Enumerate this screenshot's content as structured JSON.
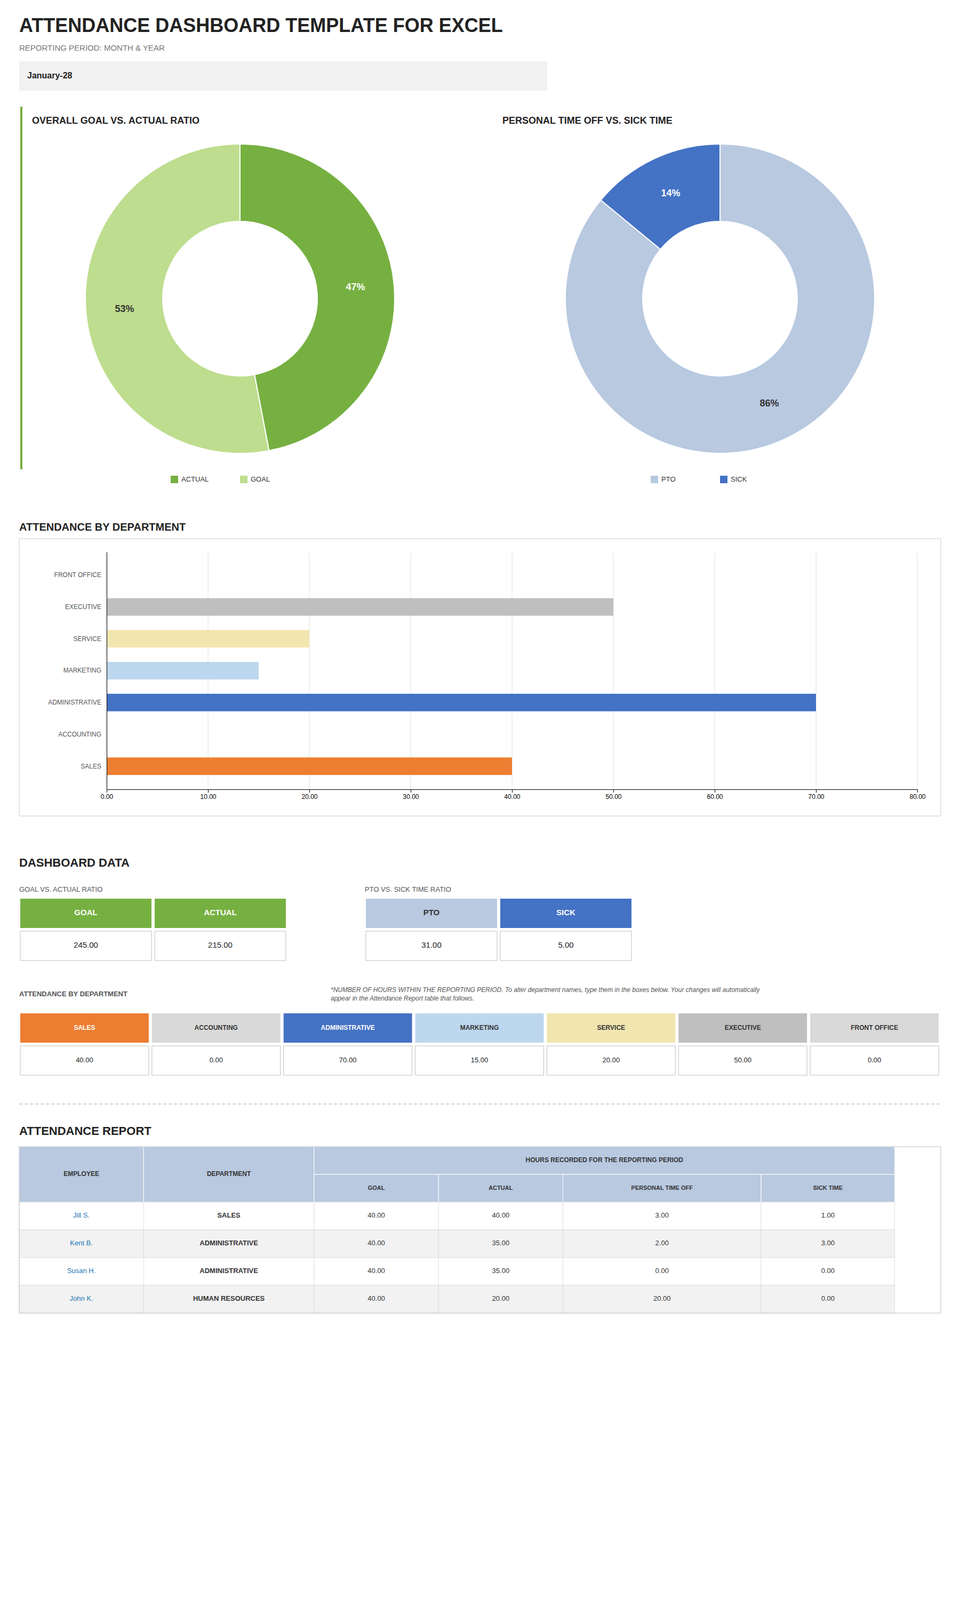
{
  "title": "ATTENDANCE DASHBOARD TEMPLATE FOR EXCEL",
  "subtitle": "REPORTING PERIOD: MONTH & YEAR",
  "annotations": [
    "January-28",
    "DASHBOARD DATA"
  ],
  "chart_data": [
    {
      "type": "pie",
      "title": "OVERALL GOAL VS. ACTUAL RATIO",
      "categories": [
        "ACTUAL",
        "GOAL"
      ],
      "values": [
        47,
        53
      ],
      "value_labels": [
        "47%",
        "53%"
      ],
      "colors": [
        "#76b041",
        "#bedd8e"
      ],
      "data_labels": true,
      "legend": "bottom"
    },
    {
      "type": "pie",
      "title": "PERSONAL TIME OFF VS. SICK TIME",
      "categories": [
        "PTO",
        "SICK"
      ],
      "values": [
        86,
        14
      ],
      "value_labels": [
        "86%",
        "14%"
      ],
      "colors": [
        "#b8c9e0",
        "#4472c4"
      ],
      "data_labels": true,
      "legend": "bottom"
    },
    {
      "type": "bar",
      "title": "ATTENDANCE BY DEPARTMENT",
      "orientation": "horizontal",
      "categories": [
        "FRONT OFFICE",
        "EXECUTIVE",
        "SERVICE",
        "MARKETING",
        "ADMINISTRATIVE",
        "ACCOUNTING",
        "SALES"
      ],
      "values": [
        0,
        50,
        20,
        15,
        70,
        0,
        40
      ],
      "colors": [
        "#d9d9d9",
        "#bfbfbf",
        "#f2e6b0",
        "#bdd7ee",
        "#4472c4",
        "#d9d9d9",
        "#ed7d31"
      ],
      "xlim": [
        0,
        80
      ],
      "xticks": [
        {
          "value": 0,
          "label": "0.00"
        },
        {
          "value": 10,
          "label": "10.00"
        },
        {
          "value": 20,
          "label": "20.00"
        },
        {
          "value": 30,
          "label": "30.00"
        },
        {
          "value": 40,
          "label": "40.00"
        },
        {
          "value": 50,
          "label": "50.00"
        },
        {
          "value": 60,
          "label": "60.00"
        },
        {
          "value": 70,
          "label": "70.00"
        },
        {
          "value": 80,
          "label": "80.00"
        }
      ],
      "grid": true
    },
    {
      "type": "table",
      "title": "GOAL VS. ACTUAL RATIO",
      "columns": [
        "GOAL",
        "ACTUAL"
      ],
      "colors": [
        "#76b041",
        "#76b041"
      ],
      "values": [
        245,
        215
      ],
      "value_labels": [
        "245.00",
        "215.00"
      ]
    },
    {
      "type": "table",
      "title": "PTO VS. SICK TIME RATIO",
      "columns": [
        "PTO",
        "SICK"
      ],
      "colors": [
        "#b8c9e0",
        "#4472c4"
      ],
      "values": [
        31,
        5
      ],
      "value_labels": [
        "31.00",
        "5.00"
      ]
    },
    {
      "type": "table",
      "title": "ATTENDANCE BY DEPARTMENT",
      "annotations": [
        "*NUMBER OF HOURS WITHIN THE REPORTING PERIOD. To alter department names, type them in the boxes below. Your changes will automatically\nappear in the Attendance Report table that follows."
      ],
      "columns": [
        "SALES",
        "ACCOUNTING",
        "ADMINISTRATIVE",
        "MARKETING",
        "SERVICE",
        "EXECUTIVE",
        "FRONT OFFICE"
      ],
      "colors": [
        "#ed7d31",
        "#d9d9d9",
        "#4472c4",
        "#bdd7ee",
        "#f2e6b0",
        "#bfbfbf",
        "#d9d9d9"
      ],
      "values": [
        40,
        0,
        70,
        15,
        20,
        50,
        0
      ],
      "value_labels": [
        "40.00",
        "0.00",
        "70.00",
        "15.00",
        "20.00",
        "50.00",
        "0.00"
      ]
    },
    {
      "type": "table",
      "title": "ATTENDANCE REPORT",
      "columns": [
        "EMPLOYEE",
        "DEPARTMENT",
        "GOAL",
        "ACTUAL",
        "PERSONAL TIME OFF",
        "SICK TIME"
      ],
      "column_group": "HOURS RECORDED FOR THE REPORTING PERIOD",
      "header_color": "#b8c9e0",
      "rows": [
        [
          "Jill S.",
          "SALES",
          "40.00",
          "40.00",
          "3.00",
          "1.00"
        ],
        [
          "Kent B.",
          "ADMINISTRATIVE",
          "40.00",
          "35.00",
          "2.00",
          "3.00"
        ],
        [
          "Susan H.",
          "ADMINISTRATIVE",
          "40.00",
          "35.00",
          "0.00",
          "0.00"
        ],
        [
          "John K.",
          "HUMAN RESOURCES",
          "40.00",
          "20.00",
          "20.00",
          "0.00"
        ]
      ],
      "row_colors": [
        "#ffffff",
        "#f2f2f2",
        "#ffffff",
        "#f2f2f2"
      ]
    }
  ]
}
